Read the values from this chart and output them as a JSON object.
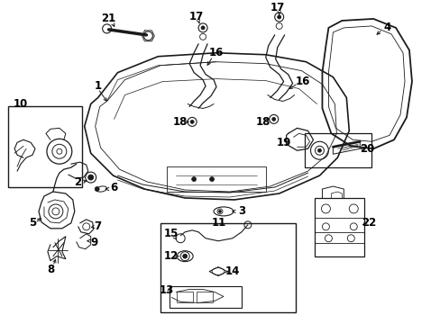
{
  "bg_color": "#ffffff",
  "line_color": "#1a1a1a",
  "lw": 0.9,
  "figsize": [
    4.89,
    3.6
  ],
  "dpi": 100
}
